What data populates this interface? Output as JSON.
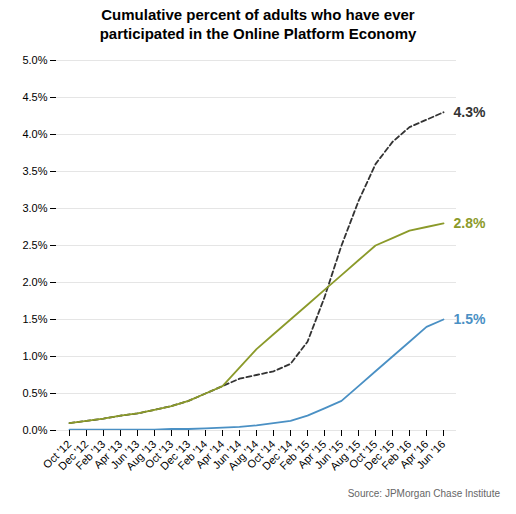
{
  "chart_data": {
    "type": "line",
    "title": "Cumulative percent of adults who have ever\nparticipated in the Online Platform Economy",
    "source": "Source:  JPMorgan Chase Institute",
    "categories": [
      "Oct '12",
      "Dec '12",
      "Feb '13",
      "Apr '13",
      "Jun '13",
      "Aug '13",
      "Oct '13",
      "Dec '13",
      "Feb '14",
      "Apr '14",
      "Jun '14",
      "Aug '14",
      "Oct '14",
      "Dec '14",
      "Feb '15",
      "Apr '15",
      "Jun '15",
      "Aug '15",
      "Oct '15",
      "Dec '15",
      "Feb '16",
      "Apr '16",
      "Jun '16"
    ],
    "series": [
      {
        "color": "#333333",
        "line_style": "dashed",
        "end_label": "4.3%",
        "values": [
          0.001,
          0.0013,
          0.0016,
          0.002,
          0.0023,
          0.0028,
          0.0033,
          0.004,
          0.005,
          0.006,
          0.007,
          0.0075,
          0.008,
          0.009,
          0.012,
          0.018,
          0.025,
          0.031,
          0.036,
          0.039,
          0.041,
          0.042,
          0.043
        ]
      },
      {
        "color": "#8B9A2A",
        "line_style": "solid",
        "end_label": "2.8%",
        "values": [
          0.001,
          0.0013,
          0.0016,
          0.002,
          0.0023,
          0.0028,
          0.0033,
          0.004,
          0.005,
          0.006,
          0.0085,
          0.011,
          0.013,
          0.015,
          0.017,
          0.019,
          0.021,
          0.023,
          0.025,
          0.026,
          0.027,
          0.0275,
          0.028
        ]
      },
      {
        "color": "#4A90C4",
        "line_style": "solid",
        "end_label": "1.5%",
        "values": [
          0.0001,
          0.0001,
          0.0001,
          0.0001,
          0.0001,
          0.0001,
          0.0002,
          0.0002,
          0.0003,
          0.0004,
          0.0005,
          0.0007,
          0.001,
          0.0013,
          0.002,
          0.003,
          0.004,
          0.006,
          0.008,
          0.01,
          0.012,
          0.014,
          0.015
        ]
      }
    ],
    "ylim": [
      0,
      0.05
    ],
    "yticks": [
      {
        "value": 0.0,
        "label": "0.0%"
      },
      {
        "value": 0.005,
        "label": "0.5%"
      },
      {
        "value": 0.01,
        "label": "1.0%"
      },
      {
        "value": 0.015,
        "label": "1.5%"
      },
      {
        "value": 0.02,
        "label": "2.0%"
      },
      {
        "value": 0.025,
        "label": "2.5%"
      },
      {
        "value": 0.03,
        "label": "3.0%"
      },
      {
        "value": 0.035,
        "label": "3.5%"
      },
      {
        "value": 0.04,
        "label": "4.0%"
      },
      {
        "value": 0.045,
        "label": "4.5%"
      },
      {
        "value": 0.05,
        "label": "5.0%"
      }
    ],
    "grid": true
  }
}
